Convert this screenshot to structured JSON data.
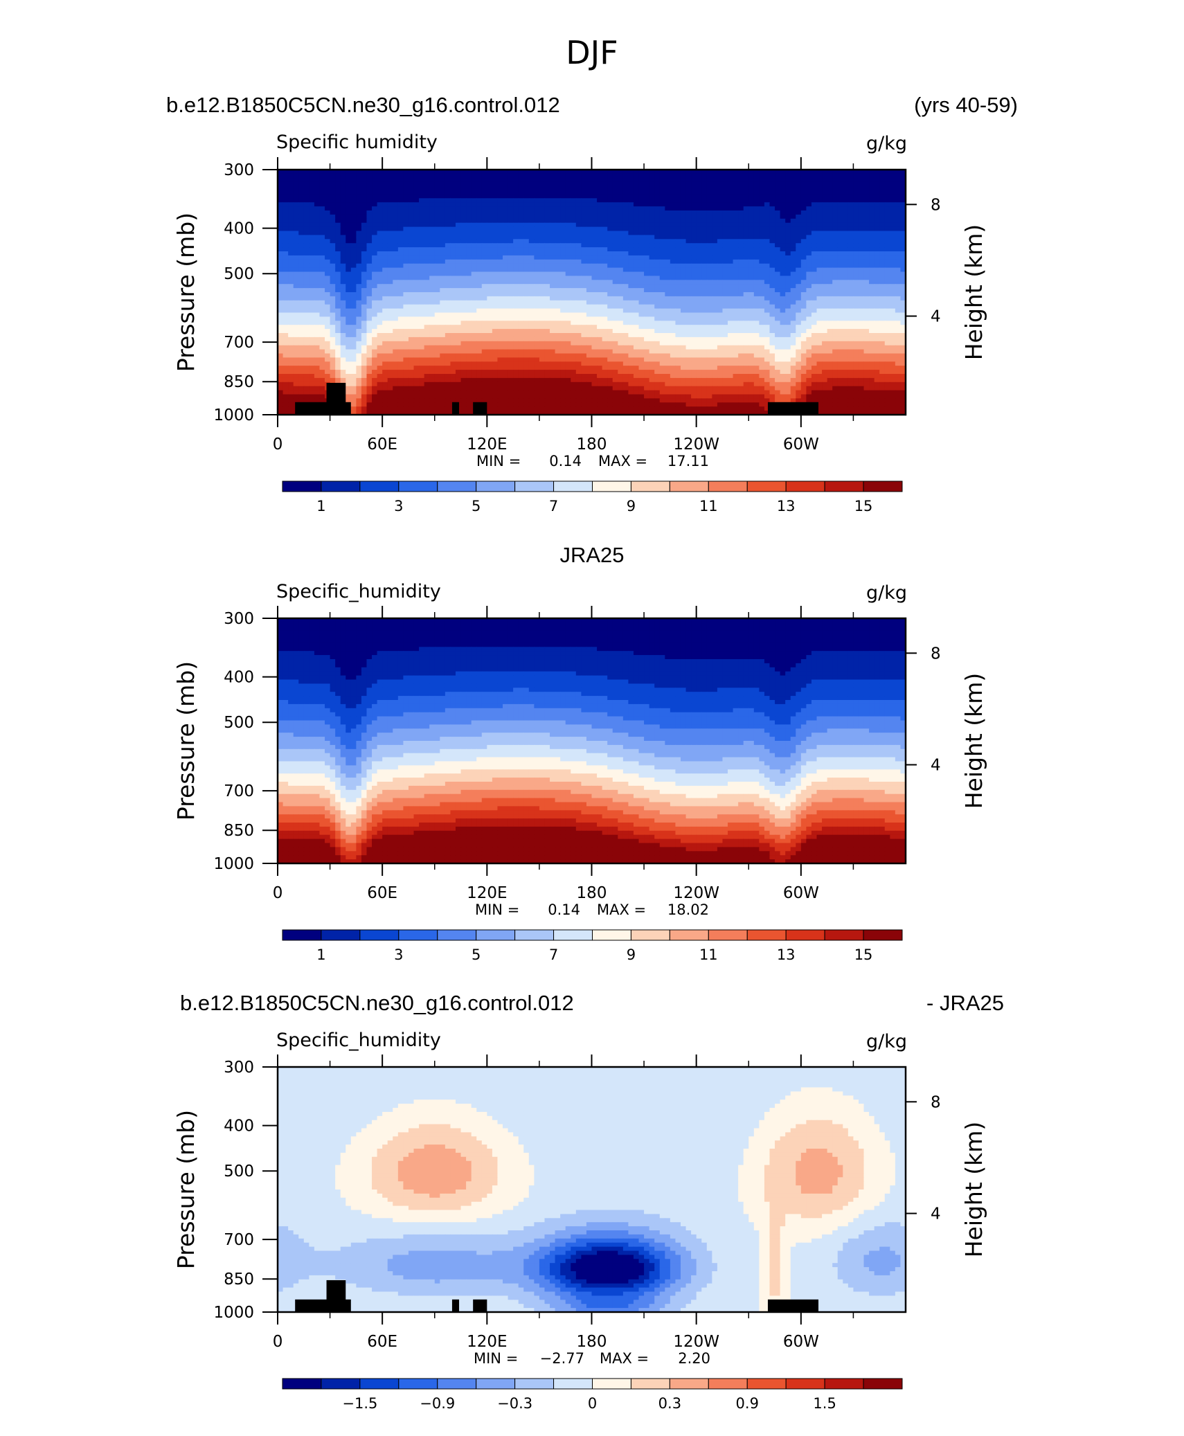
{
  "figure": {
    "title": "DJF"
  },
  "palette": {
    "colors": [
      "#00007f",
      "#0023a8",
      "#0a46d2",
      "#2a67e8",
      "#5485f0",
      "#80a6f5",
      "#aac6f8",
      "#d4e6fa",
      "#fff6e8",
      "#fcd3b8",
      "#f9a888",
      "#f47e5b",
      "#ea5530",
      "#d8331a",
      "#b7170f",
      "#8a0408"
    ]
  },
  "chart_data": [
    {
      "type": "heatmap",
      "left_title": "b.e12.B1850C5CN.ne30_g16.control.012",
      "right_title": "(yrs 40-59)",
      "variable_label": "Specific humidity",
      "units": "g/kg",
      "ylabel": "Pressure (mb)",
      "y2label": "Height (km)",
      "x_ticks": [
        "0",
        "60E",
        "120E",
        "180",
        "120W",
        "60W"
      ],
      "x_tick_lon": [
        0,
        60,
        120,
        180,
        240,
        300
      ],
      "xlim": [
        0,
        360
      ],
      "y_ticks": [
        "300",
        "400",
        "500",
        "700",
        "850",
        "1000"
      ],
      "y_tick_values": [
        300,
        400,
        500,
        700,
        850,
        1000
      ],
      "ylim": [
        300,
        1000
      ],
      "y2_ticks": [
        "8",
        "4"
      ],
      "stats": {
        "min_label": "MIN =",
        "min": "0.14",
        "max_label": "MAX =",
        "max": "17.11"
      },
      "colorbar_labels": [
        "1",
        "3",
        "5",
        "7",
        "9",
        "11",
        "13",
        "15"
      ],
      "contour_levels": [
        0,
        1,
        2,
        3,
        4,
        5,
        6,
        7,
        8,
        9,
        10,
        11,
        12,
        13,
        14,
        15,
        16
      ],
      "field": "model",
      "terrain": true,
      "cmin": 0,
      "cstep": 1
    },
    {
      "type": "heatmap",
      "left_title": "",
      "center_title": "JRA25",
      "right_title": "",
      "variable_label": "Specific_humidity",
      "units": "g/kg",
      "ylabel": "Pressure (mb)",
      "y2label": "Height (km)",
      "x_ticks": [
        "0",
        "60E",
        "120E",
        "180",
        "120W",
        "60W"
      ],
      "x_tick_lon": [
        0,
        60,
        120,
        180,
        240,
        300
      ],
      "xlim": [
        0,
        360
      ],
      "y_ticks": [
        "300",
        "400",
        "500",
        "700",
        "850",
        "1000"
      ],
      "y_tick_values": [
        300,
        400,
        500,
        700,
        850,
        1000
      ],
      "ylim": [
        300,
        1000
      ],
      "y2_ticks": [
        "8",
        "4"
      ],
      "stats": {
        "min_label": "MIN =",
        "min": "0.14",
        "max_label": "MAX =",
        "max": "18.02"
      },
      "colorbar_labels": [
        "1",
        "3",
        "5",
        "7",
        "9",
        "11",
        "13",
        "15"
      ],
      "contour_levels": [
        0,
        1,
        2,
        3,
        4,
        5,
        6,
        7,
        8,
        9,
        10,
        11,
        12,
        13,
        14,
        15,
        16
      ],
      "field": "obs",
      "terrain": false,
      "cmin": 0,
      "cstep": 1
    },
    {
      "type": "heatmap",
      "left_title": "b.e12.B1850C5CN.ne30_g16.control.012",
      "right_title": "- JRA25",
      "variable_label": "Specific_humidity",
      "units": "g/kg",
      "ylabel": "Pressure (mb)",
      "y2label": "Height (km)",
      "x_ticks": [
        "0",
        "60E",
        "120E",
        "180",
        "120W",
        "60W"
      ],
      "x_tick_lon": [
        0,
        60,
        120,
        180,
        240,
        300
      ],
      "xlim": [
        0,
        360
      ],
      "y_ticks": [
        "300",
        "400",
        "500",
        "700",
        "850",
        "1000"
      ],
      "y_tick_values": [
        300,
        400,
        500,
        700,
        850,
        1000
      ],
      "ylim": [
        300,
        1000
      ],
      "y2_ticks": [
        "8",
        "4"
      ],
      "stats": {
        "min_label": "MIN =",
        "min": "−2.77",
        "max_label": "MAX =",
        "max": "2.20"
      },
      "colorbar_labels": [
        "−1.5",
        "−0.9",
        "−0.3",
        "0",
        "0.3",
        "0.9",
        "1.5"
      ],
      "contour_levels": [
        -2.4,
        -2.1,
        -1.8,
        -1.5,
        -1.2,
        -0.9,
        -0.6,
        -0.3,
        0,
        0.3,
        0.6,
        0.9,
        1.2,
        1.5,
        1.8,
        2.1,
        2.4
      ],
      "field": "diff",
      "terrain": true,
      "cmin": -2.4,
      "cstep": 0.3
    }
  ]
}
